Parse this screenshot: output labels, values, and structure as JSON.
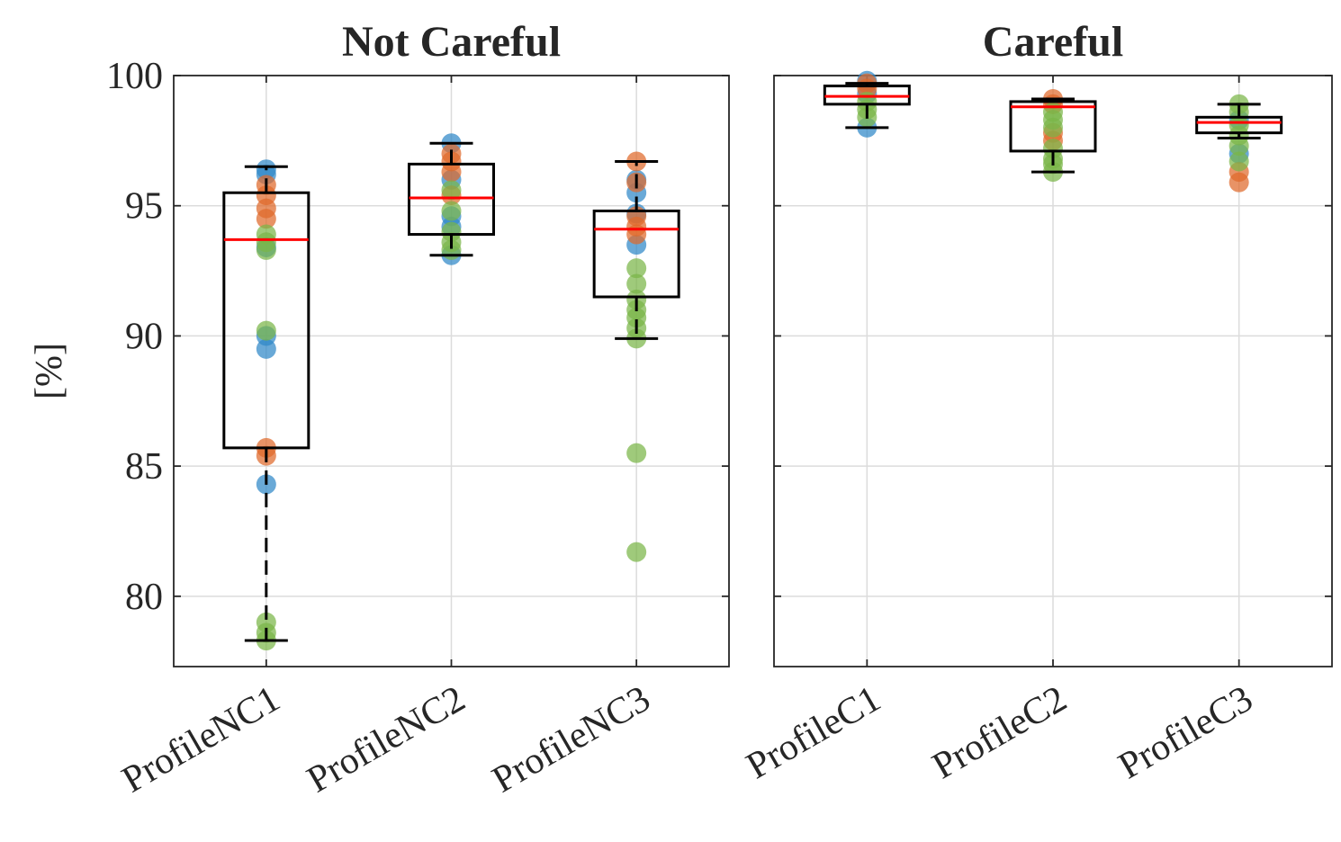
{
  "chart_data": [
    {
      "type": "box",
      "title": "Not Careful",
      "ylabel": "[%]",
      "xlabel": "",
      "ylim": [
        77.3,
        100
      ],
      "yticks": [
        80,
        85,
        90,
        95,
        100
      ],
      "grid": true,
      "categories": [
        "ProfileNC1",
        "ProfileNC2",
        "ProfileNC3"
      ],
      "boxes": [
        {
          "q1": 85.7,
          "median": 93.7,
          "q3": 95.5,
          "whisker_low": 78.3,
          "whisker_high": 96.5
        },
        {
          "q1": 93.9,
          "median": 95.3,
          "q3": 96.6,
          "whisker_low": 93.1,
          "whisker_high": 97.4
        },
        {
          "q1": 91.5,
          "median": 94.1,
          "q3": 94.8,
          "whisker_low": 89.9,
          "whisker_high": 96.7
        }
      ],
      "points": [
        [
          {
            "y": 96.4,
            "series": "blue"
          },
          {
            "y": 96.2,
            "series": "blue"
          },
          {
            "y": 89.5,
            "series": "blue"
          },
          {
            "y": 84.3,
            "series": "blue"
          },
          {
            "y": 90.0,
            "series": "blue"
          },
          {
            "y": 93.4,
            "series": "blue"
          },
          {
            "y": 95.8,
            "series": "orange"
          },
          {
            "y": 95.4,
            "series": "orange"
          },
          {
            "y": 94.9,
            "series": "orange"
          },
          {
            "y": 94.5,
            "series": "orange"
          },
          {
            "y": 85.7,
            "series": "orange"
          },
          {
            "y": 85.4,
            "series": "orange"
          },
          {
            "y": 93.9,
            "series": "green"
          },
          {
            "y": 93.6,
            "series": "green"
          },
          {
            "y": 93.3,
            "series": "green"
          },
          {
            "y": 90.2,
            "series": "green"
          },
          {
            "y": 79.0,
            "series": "green"
          },
          {
            "y": 78.6,
            "series": "green"
          },
          {
            "y": 78.3,
            "series": "green"
          }
        ],
        [
          {
            "y": 97.4,
            "series": "blue"
          },
          {
            "y": 96.0,
            "series": "blue"
          },
          {
            "y": 94.6,
            "series": "blue"
          },
          {
            "y": 94.2,
            "series": "blue"
          },
          {
            "y": 93.1,
            "series": "blue"
          },
          {
            "y": 97.0,
            "series": "orange"
          },
          {
            "y": 96.7,
            "series": "orange"
          },
          {
            "y": 96.3,
            "series": "orange"
          },
          {
            "y": 95.4,
            "series": "orange"
          },
          {
            "y": 95.6,
            "series": "green"
          },
          {
            "y": 94.8,
            "series": "green"
          },
          {
            "y": 94.0,
            "series": "green"
          },
          {
            "y": 93.6,
            "series": "green"
          },
          {
            "y": 93.3,
            "series": "green"
          }
        ],
        [
          {
            "y": 96.0,
            "series": "blue"
          },
          {
            "y": 95.5,
            "series": "blue"
          },
          {
            "y": 94.7,
            "series": "blue"
          },
          {
            "y": 93.5,
            "series": "blue"
          },
          {
            "y": 96.7,
            "series": "orange"
          },
          {
            "y": 95.9,
            "series": "orange"
          },
          {
            "y": 94.6,
            "series": "orange"
          },
          {
            "y": 94.2,
            "series": "orange"
          },
          {
            "y": 93.9,
            "series": "orange"
          },
          {
            "y": 92.6,
            "series": "green"
          },
          {
            "y": 92.0,
            "series": "green"
          },
          {
            "y": 91.4,
            "series": "green"
          },
          {
            "y": 91.0,
            "series": "green"
          },
          {
            "y": 90.7,
            "series": "green"
          },
          {
            "y": 90.3,
            "series": "green"
          },
          {
            "y": 89.9,
            "series": "green"
          },
          {
            "y": 85.5,
            "series": "green"
          },
          {
            "y": 81.7,
            "series": "green"
          }
        ]
      ]
    },
    {
      "type": "box",
      "title": "Careful",
      "ylabel": "",
      "xlabel": "",
      "ylim": [
        77.3,
        100
      ],
      "yticks": [
        80,
        85,
        90,
        95,
        100
      ],
      "grid": true,
      "categories": [
        "ProfileC1",
        "ProfileC2",
        "ProfileC3"
      ],
      "boxes": [
        {
          "q1": 98.9,
          "median": 99.2,
          "q3": 99.6,
          "whisker_low": 98.0,
          "whisker_high": 99.7
        },
        {
          "q1": 97.1,
          "median": 98.8,
          "q3": 99.0,
          "whisker_low": 96.3,
          "whisker_high": 99.1
        },
        {
          "q1": 97.8,
          "median": 98.2,
          "q3": 98.4,
          "whisker_low": 97.6,
          "whisker_high": 98.9
        }
      ],
      "points": [
        [
          {
            "y": 99.8,
            "series": "blue"
          },
          {
            "y": 98.0,
            "series": "blue"
          },
          {
            "y": 99.3,
            "series": "blue"
          },
          {
            "y": 99.7,
            "series": "orange"
          },
          {
            "y": 99.5,
            "series": "orange"
          },
          {
            "y": 99.0,
            "series": "green"
          },
          {
            "y": 98.7,
            "series": "green"
          },
          {
            "y": 98.4,
            "series": "green"
          }
        ],
        [
          {
            "y": 99.1,
            "series": "orange"
          },
          {
            "y": 98.9,
            "series": "orange"
          },
          {
            "y": 97.8,
            "series": "orange"
          },
          {
            "y": 97.5,
            "series": "orange"
          },
          {
            "y": 98.6,
            "series": "green"
          },
          {
            "y": 98.3,
            "series": "green"
          },
          {
            "y": 98.0,
            "series": "green"
          },
          {
            "y": 97.2,
            "series": "green"
          },
          {
            "y": 96.8,
            "series": "green"
          },
          {
            "y": 96.6,
            "series": "green"
          },
          {
            "y": 96.3,
            "series": "green"
          }
        ],
        [
          {
            "y": 98.3,
            "series": "blue"
          },
          {
            "y": 97.0,
            "series": "blue"
          },
          {
            "y": 96.3,
            "series": "orange"
          },
          {
            "y": 95.9,
            "series": "orange"
          },
          {
            "y": 98.9,
            "series": "green"
          },
          {
            "y": 98.6,
            "series": "green"
          },
          {
            "y": 98.1,
            "series": "green"
          },
          {
            "y": 97.7,
            "series": "green"
          },
          {
            "y": 97.3,
            "series": "green"
          },
          {
            "y": 96.7,
            "series": "green"
          }
        ]
      ]
    }
  ],
  "colors": {
    "blue": "#2f88c8",
    "orange": "#df6a2b",
    "green": "#7ab648",
    "median": "#ff0000",
    "box": "#000000",
    "grid": "#dcdcdc",
    "axis": "#262626"
  }
}
